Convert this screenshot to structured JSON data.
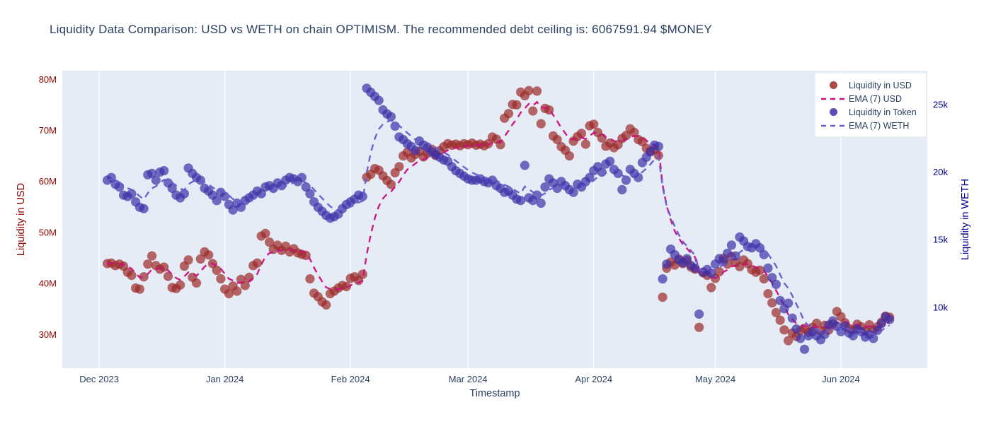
{
  "chart_data": {
    "type": "scatter",
    "title": "Liquidity Data Comparison: USD vs WETH on chain OPTIMISM. The recommended debt ceiling is: 6067591.94 $MONEY",
    "xlabel": "Timestamp",
    "plot_bgcolor": "#e5ecf6",
    "grid_color": "#ffffff",
    "title_color": "#2a3f5f",
    "x_axis": {
      "label": "Timestamp",
      "tick_labels": [
        "Dec 2023",
        "Jan 2024",
        "Feb 2024",
        "Mar 2024",
        "Apr 2024",
        "May 2024",
        "Jun 2024"
      ],
      "tick_days": [
        0,
        31,
        62,
        91,
        122,
        152,
        183
      ],
      "range": [
        -9.1,
        204.3
      ],
      "epoch": "2023-12-01",
      "tick_color": "#2a3f5f",
      "grid": true
    },
    "left_axis": {
      "label": "Liquidity in USD",
      "tick_labels": [
        "30M",
        "40M",
        "50M",
        "60M",
        "70M",
        "80M"
      ],
      "tick_values": [
        30,
        40,
        50,
        60,
        70,
        80
      ],
      "unit": "millions USD",
      "range": [
        23.4,
        81.7
      ],
      "color": "#8b0000",
      "grid": false
    },
    "right_axis": {
      "label": "Liquidity in WETH",
      "tick_labels": [
        "10k",
        "15k",
        "20k",
        "25k"
      ],
      "tick_values": [
        10,
        15,
        20,
        25
      ],
      "unit": "thousands WETH",
      "range": [
        5.5,
        27.5
      ],
      "color": "#00008b",
      "grid": false
    },
    "cadence": "daily",
    "start_day": 2,
    "series": [
      {
        "name": "Liquidity in USD",
        "kind": "scatter",
        "axis": "left",
        "color": "#9d2a28",
        "marker_opacity": 0.7,
        "values": [
          43.9,
          44.0,
          43.5,
          43.8,
          43.4,
          42.2,
          41.6,
          39.1,
          38.9,
          41.3,
          43.8,
          45.4,
          43.5,
          42.8,
          43.2,
          41.4,
          39.2,
          39.0,
          39.7,
          43.4,
          44.6,
          41.2,
          40.1,
          44.8,
          46.2,
          45.6,
          43.9,
          42.6,
          40.9,
          38.9,
          38.0,
          39.5,
          38.5,
          40.8,
          39.6,
          41.2,
          43.5,
          44.0,
          49.3,
          49.8,
          48.1,
          46.7,
          47.5,
          46.5,
          47.3,
          46.2,
          46.8,
          46.0,
          45.7,
          45.5,
          40.9,
          38.1,
          37.4,
          36.4,
          35.8,
          38.0,
          38.5,
          39.1,
          39.6,
          39.4,
          41.0,
          41.3,
          40.6,
          41.8,
          60.8,
          61.4,
          62.5,
          62.2,
          61.1,
          60.2,
          59.4,
          61.7,
          62.9,
          65.0,
          65.7,
          64.6,
          65.3,
          65.9,
          64.8,
          65.5,
          66.3,
          65.1,
          66.0,
          66.8,
          67.4,
          67.1,
          67.3,
          67.0,
          67.4,
          67.2,
          67.5,
          67.1,
          67.3,
          67.0,
          67.4,
          68.7,
          68.3,
          67.2,
          72.4,
          73.3,
          75.1,
          75.0,
          77.5,
          76.8,
          77.8,
          73.8,
          77.7,
          71.3,
          74.3,
          74.0,
          68.9,
          68.2,
          66.8,
          66.1,
          65.0,
          67.9,
          68.8,
          69.4,
          67.3,
          70.9,
          71.2,
          69.6,
          68.5,
          66.9,
          67.5,
          66.6,
          67.2,
          68.4,
          69.0,
          70.3,
          69.6,
          68.2,
          67.8,
          66.5,
          65.9,
          66.2,
          65.1,
          37.3,
          43.0,
          44.2,
          43.6,
          44.8,
          43.9,
          44.5,
          43.2,
          42.8,
          31.4,
          42.1,
          41.6,
          39.2,
          41.0,
          42.3,
          44.9,
          43.8,
          45.3,
          44.1,
          43.3,
          44.6,
          43.9,
          42.7,
          42.2,
          42.6,
          40.9,
          38.0,
          36.2,
          34.3,
          32.8,
          30.9,
          28.8,
          30.3,
          29.6,
          30.8,
          31.2,
          30.4,
          31.4,
          32.2,
          30.7,
          31.8,
          30.9,
          32.1,
          34.5,
          33.5,
          32.3,
          31.2,
          30.9,
          32.0,
          31.5,
          30.7,
          31.9,
          30.9,
          31.5,
          32.4,
          33.6,
          33.4
        ]
      },
      {
        "name": "EMA (7) USD",
        "kind": "ema",
        "axis": "left",
        "color": "#cb0f7e",
        "span": 7,
        "derived_from": "Liquidity in USD"
      },
      {
        "name": "Liquidity in Token",
        "kind": "scatter",
        "axis": "right",
        "color": "#3d30a8",
        "marker_opacity": 0.7,
        "values": [
          19.4,
          19.6,
          19.1,
          18.9,
          18.3,
          18.2,
          18.4,
          17.8,
          17.4,
          17.3,
          19.8,
          19.9,
          19.4,
          20.0,
          20.1,
          19.2,
          18.8,
          18.3,
          18.1,
          18.4,
          20.3,
          19.9,
          19.6,
          19.4,
          18.8,
          18.6,
          18.3,
          17.9,
          18.5,
          18.2,
          17.6,
          17.2,
          17.7,
          17.4,
          17.9,
          18.1,
          18.3,
          18.6,
          18.4,
          18.9,
          19.0,
          18.8,
          19.2,
          19.0,
          19.4,
          19.6,
          19.5,
          19.3,
          19.6,
          18.9,
          18.4,
          17.8,
          17.4,
          17.1,
          16.8,
          16.6,
          16.7,
          16.9,
          17.3,
          17.6,
          17.8,
          18.0,
          18.3,
          18.2,
          26.2,
          25.9,
          25.6,
          25.3,
          24.6,
          24.3,
          24.1,
          23.4,
          22.6,
          22.4,
          22.1,
          21.9,
          21.6,
          22.3,
          22.0,
          21.8,
          21.5,
          21.3,
          21.1,
          20.9,
          20.8,
          20.4,
          20.1,
          19.9,
          19.7,
          19.5,
          19.4,
          19.4,
          19.5,
          19.3,
          19.2,
          19.4,
          19.0,
          18.8,
          18.5,
          18.6,
          18.3,
          18.0,
          17.9,
          20.5,
          18.1,
          17.9,
          18.3,
          17.7,
          18.9,
          19.5,
          19.2,
          18.8,
          19.3,
          19.0,
          18.7,
          18.5,
          19.1,
          18.9,
          19.3,
          19.6,
          20.1,
          20.4,
          20.0,
          20.6,
          20.8,
          20.2,
          19.9,
          18.7,
          19.4,
          20.2,
          19.9,
          19.6,
          20.7,
          21.1,
          21.5,
          22.0,
          21.9,
          12.1,
          13.2,
          14.3,
          13.9,
          13.5,
          13.3,
          13.6,
          13.1,
          12.9,
          9.5,
          12.6,
          12.8,
          12.5,
          13.2,
          13.6,
          13.4,
          14.0,
          14.6,
          13.8,
          15.2,
          14.9,
          14.5,
          14.4,
          14.7,
          14.4,
          13.9,
          12.9,
          12.2,
          11.7,
          10.5,
          9.9,
          10.3,
          9.2,
          8.4,
          7.7,
          6.9,
          7.9,
          8.2,
          7.9,
          7.6,
          8.0,
          8.7,
          9.0,
          8.6,
          8.2,
          8.6,
          8.1,
          7.9,
          8.4,
          8.2,
          7.8,
          8.0,
          7.7,
          8.3,
          8.8,
          9.3,
          9.1
        ]
      },
      {
        "name": "EMA (7) WETH",
        "kind": "ema",
        "axis": "right",
        "color": "#6a5acd",
        "span": 7,
        "derived_from": "Liquidity in Token"
      }
    ]
  },
  "legend": {
    "items": [
      {
        "label": "Liquidity in USD",
        "swatch": "dot"
      },
      {
        "label": "EMA (7) USD",
        "swatch": "dashes"
      },
      {
        "label": "Liquidity in Token",
        "swatch": "dot"
      },
      {
        "label": "EMA (7) WETH",
        "swatch": "dashes"
      }
    ]
  }
}
